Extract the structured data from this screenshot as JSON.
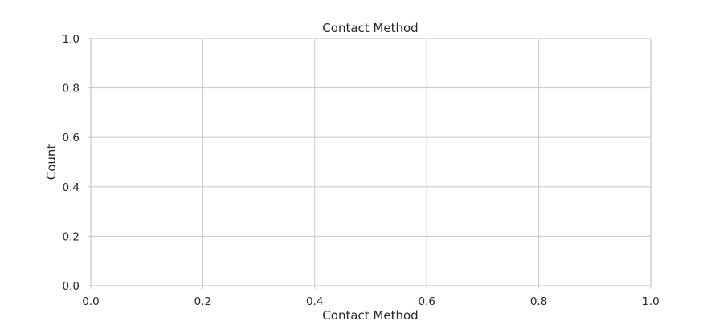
{
  "chart_data": {
    "type": "bar",
    "title": "Contact Method",
    "xlabel": "Contact Method",
    "ylabel": "Count",
    "categories": [],
    "values": [],
    "xlim": [
      0.0,
      1.0
    ],
    "ylim": [
      0.0,
      1.0
    ],
    "xticks": [
      "0.0",
      "0.2",
      "0.4",
      "0.6",
      "0.8",
      "1.0"
    ],
    "yticks": [
      "0.0",
      "0.2",
      "0.4",
      "0.6",
      "0.8",
      "1.0"
    ],
    "grid": true,
    "legend": "none",
    "colors": {
      "grid": "#cccccc",
      "frame": "#cccccc",
      "text": "#262626",
      "background": "#ffffff"
    }
  }
}
